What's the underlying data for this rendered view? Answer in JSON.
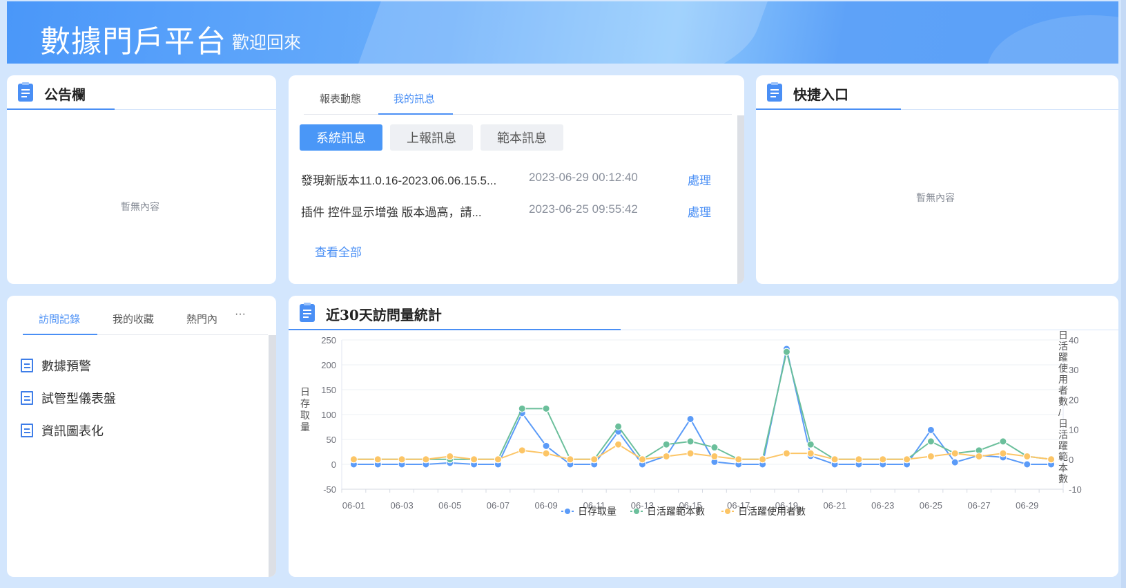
{
  "header": {
    "title": "數據門戶平台",
    "subtitle": "歡迎回來"
  },
  "announcement": {
    "title": "公告欄",
    "empty": "暫無內容",
    "icon": "clipboard-icon"
  },
  "messages": {
    "tabs": [
      {
        "label": "報表動態",
        "active": false
      },
      {
        "label": "我的訊息",
        "active": true
      }
    ],
    "subtabs": [
      {
        "label": "系統訊息",
        "active": true
      },
      {
        "label": "上報訊息",
        "active": false
      },
      {
        "label": "範本訊息",
        "active": false
      }
    ],
    "rows": [
      {
        "text": "發現新版本11.0.16-2023.06.06.15.5...",
        "time": "2023-06-29 00:12:40",
        "action": "處理"
      },
      {
        "text": "插件 控件显示增強 版本過高，請...",
        "time": "2023-06-25 09:55:42",
        "action": "處理"
      }
    ],
    "view_all": "查看全部"
  },
  "shortcuts": {
    "title": "快捷入口",
    "empty": "暫無內容"
  },
  "visits": {
    "tabs": [
      {
        "label": "訪問記錄",
        "active": true
      },
      {
        "label": "我的收藏",
        "active": false
      },
      {
        "label": "熱門內",
        "active": false
      }
    ],
    "more": "···",
    "items": [
      {
        "label": "數據預警",
        "icon": "document-icon"
      },
      {
        "label": "試管型儀表盤",
        "icon": "document-icon"
      },
      {
        "label": "資訊圖表化",
        "icon": "document-icon"
      }
    ]
  },
  "stats": {
    "title": "近30天訪問量統計"
  },
  "chart_data": {
    "type": "line",
    "title": "近30天訪問量統計",
    "x": [
      "06-01",
      "06-02",
      "06-03",
      "06-04",
      "06-05",
      "06-06",
      "06-07",
      "06-08",
      "06-09",
      "06-10",
      "06-11",
      "06-12",
      "06-13",
      "06-14",
      "06-15",
      "06-16",
      "06-17",
      "06-18",
      "06-19",
      "06-20",
      "06-21",
      "06-22",
      "06-23",
      "06-24",
      "06-25",
      "06-26",
      "06-27",
      "06-28",
      "06-29",
      "06-30"
    ],
    "xtick_labels": [
      "06-01",
      "06-03",
      "06-05",
      "06-07",
      "06-09",
      "06-11",
      "06-13",
      "06-15",
      "06-17",
      "06-19",
      "06-21",
      "06-23",
      "06-25",
      "06-27",
      "06-29"
    ],
    "ylabel": "日存取量",
    "ylabel_right": "日活躍使用者數/日活躍範本數",
    "ylim": [
      -50,
      250
    ],
    "yticks": [
      -50,
      0,
      50,
      100,
      150,
      200,
      250
    ],
    "ylim_right": [
      -10,
      40
    ],
    "yticks_right": [
      -10,
      0,
      10,
      20,
      30,
      40
    ],
    "grid": true,
    "legend_position": "bottom",
    "series": [
      {
        "name": "日存取量",
        "axis": "left",
        "color": "#5b9bf8",
        "values": [
          0,
          0,
          0,
          0,
          3,
          0,
          0,
          103,
          37,
          0,
          0,
          66,
          0,
          17,
          91,
          5,
          0,
          0,
          232,
          17,
          0,
          0,
          0,
          0,
          69,
          4,
          18,
          14,
          0,
          0
        ]
      },
      {
        "name": "日活躍範本數",
        "axis": "right",
        "color": "#6bbf9b",
        "values": [
          0,
          0,
          0,
          0,
          0,
          0,
          0,
          17,
          17,
          0,
          0,
          11,
          0,
          5,
          6,
          4,
          0,
          0,
          36,
          5,
          0,
          0,
          0,
          0,
          6,
          2,
          3,
          6,
          1,
          0
        ]
      },
      {
        "name": "日活躍使用者數",
        "axis": "right",
        "color": "#fcc566",
        "values": [
          0,
          0,
          0,
          0,
          1,
          0,
          0,
          3,
          2,
          0,
          0,
          5,
          0,
          1,
          2,
          1,
          0,
          0,
          2,
          2,
          0,
          0,
          0,
          0,
          1,
          2,
          1,
          2,
          1,
          0
        ]
      }
    ]
  }
}
